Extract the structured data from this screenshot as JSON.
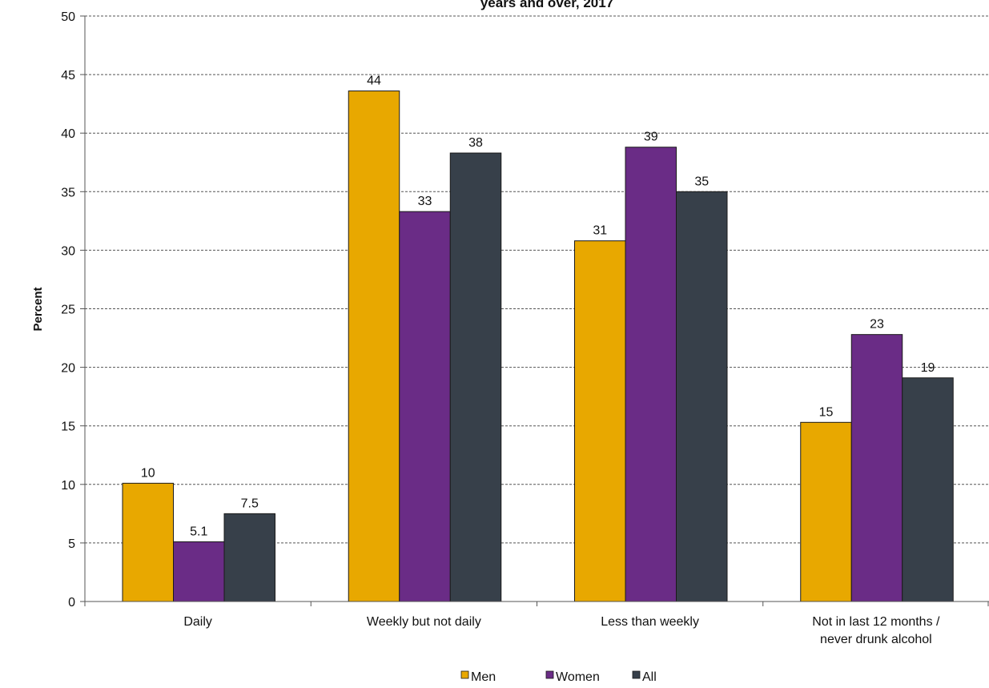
{
  "title": "years and over, 2017",
  "chart_data": {
    "type": "bar",
    "title": "years and over, 2017",
    "xlabel": "",
    "ylabel": "Percent",
    "ylim": [
      0,
      50
    ],
    "yticks": [
      0,
      5,
      10,
      15,
      20,
      25,
      30,
      35,
      40,
      45,
      50
    ],
    "grid": true,
    "legend_position": "bottom",
    "categories": [
      [
        "Daily"
      ],
      [
        "Weekly but not daily"
      ],
      [
        "Less than weekly"
      ],
      [
        "Not in last 12 months /",
        "never drunk alcohol"
      ]
    ],
    "series": [
      {
        "name": "Men",
        "color": "#E8A800",
        "values": [
          10.1,
          43.6,
          30.8,
          15.3
        ],
        "labels": [
          "10",
          "44",
          "31",
          "15"
        ]
      },
      {
        "name": "Women",
        "color": "#6A2C86",
        "values": [
          5.1,
          33.3,
          38.8,
          22.8
        ],
        "labels": [
          "5.1",
          "33",
          "39",
          "23"
        ]
      },
      {
        "name": "All",
        "color": "#37404A",
        "values": [
          7.5,
          38.3,
          35.0,
          19.1
        ],
        "labels": [
          "7.5",
          "38",
          "35",
          "19"
        ]
      }
    ]
  }
}
